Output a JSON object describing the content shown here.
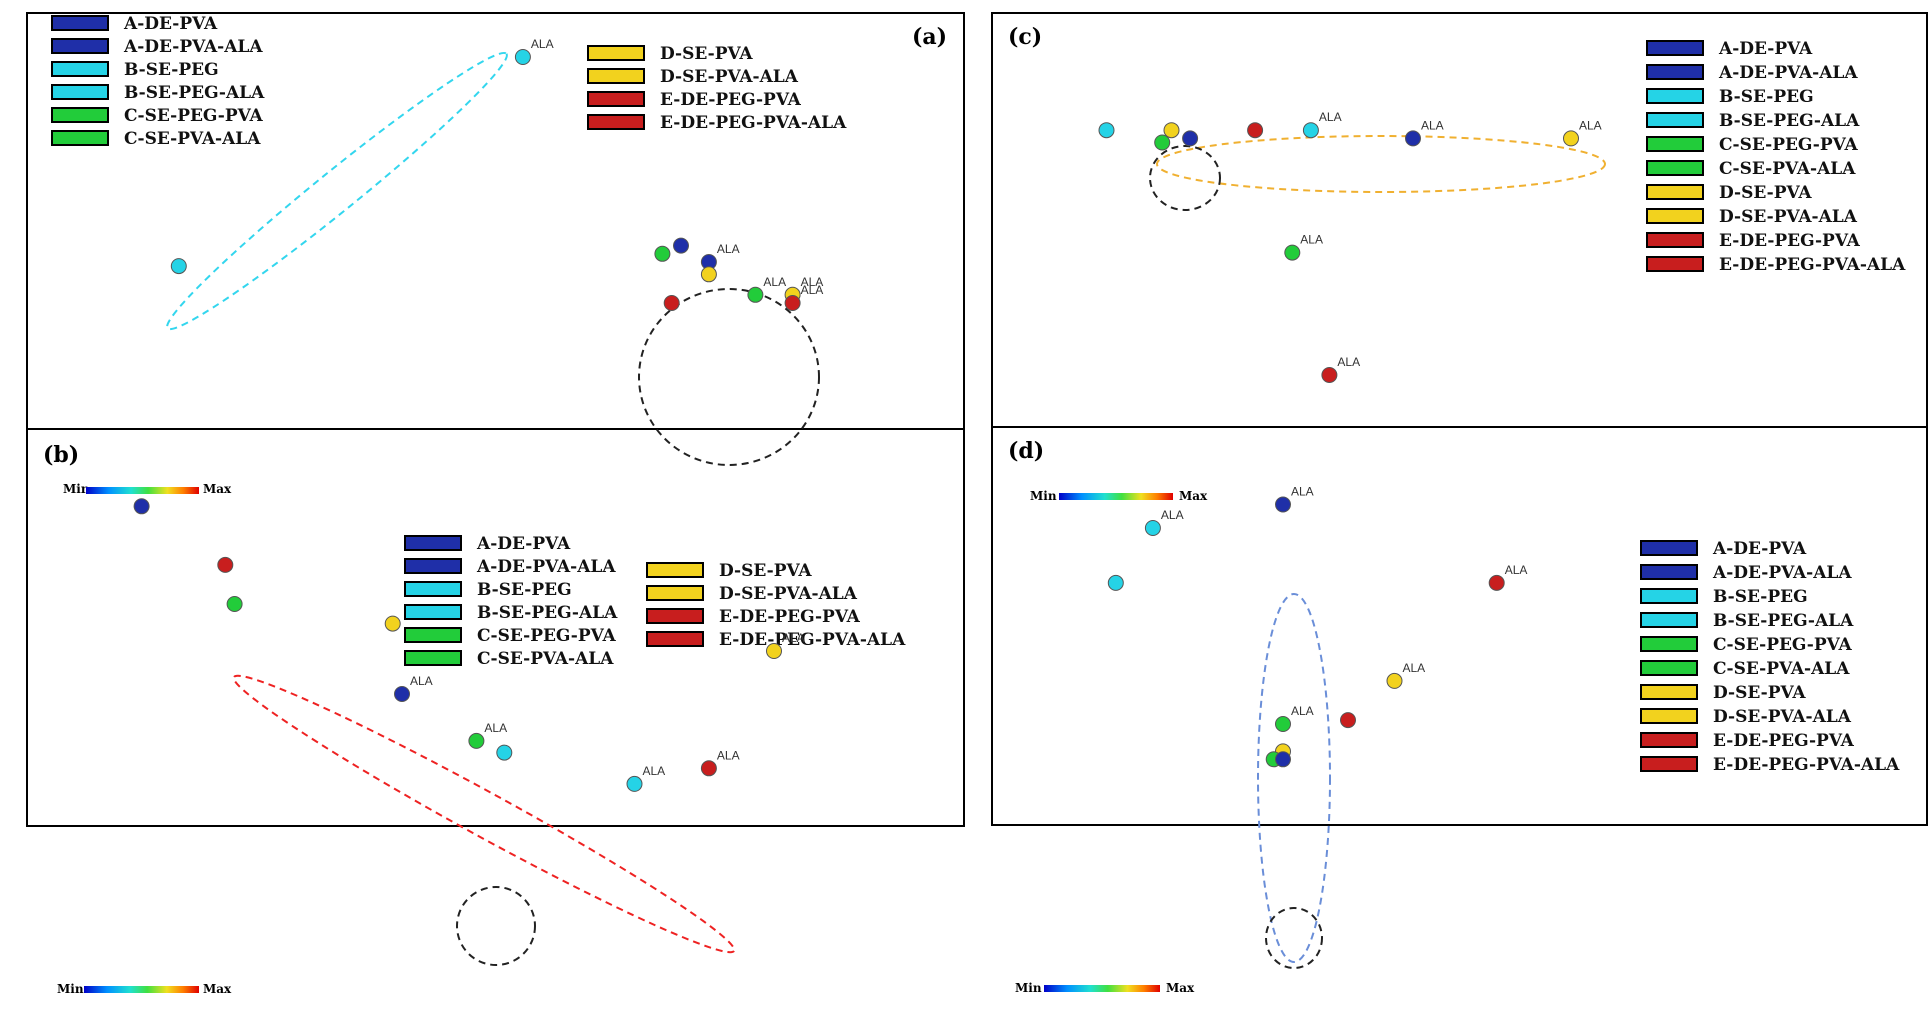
{
  "group_colors": {
    "A": "#1f2fa8",
    "B": "#25d3e6",
    "C": "#22cc3a",
    "D": "#f2d21e",
    "E": "#c81e1e"
  },
  "chart_data": [
    {
      "type": "scatter",
      "panel_label": "(a)",
      "title": "",
      "xlabel": "",
      "ylabel": "",
      "xlim": [
        0,
        1
      ],
      "ylim": [
        0,
        1
      ],
      "grid": false,
      "legend_position": "top-left, two columns",
      "color_scale": {
        "min_label": "Min",
        "max_label": "Max"
      },
      "legend": [
        {
          "label": "A-DE-PVA",
          "group": "A"
        },
        {
          "label": "A-DE-PVA-ALA",
          "group": "A"
        },
        {
          "label": "B-SE-PEG",
          "group": "B"
        },
        {
          "label": "B-SE-PEG-ALA",
          "group": "B"
        },
        {
          "label": "C-SE-PEG-PVA",
          "group": "C"
        },
        {
          "label": "C-SE-PVA-ALA",
          "group": "C"
        },
        {
          "label": "D-SE-PVA",
          "group": "D"
        },
        {
          "label": "D-SE-PVA-ALA",
          "group": "D"
        },
        {
          "label": "E-DE-PEG-PVA",
          "group": "E"
        },
        {
          "label": "E-DE-PEG-PVA-ALA",
          "group": "E"
        }
      ],
      "points": [
        {
          "x": 0.16,
          "y": 0.39,
          "group": "B",
          "label": ""
        },
        {
          "x": 0.53,
          "y": 0.9,
          "group": "B",
          "label": "ALA"
        },
        {
          "x": 0.7,
          "y": 0.44,
          "group": "A",
          "label": ""
        },
        {
          "x": 0.73,
          "y": 0.4,
          "group": "A",
          "label": "ALA"
        },
        {
          "x": 0.68,
          "y": 0.42,
          "group": "C",
          "label": ""
        },
        {
          "x": 0.73,
          "y": 0.37,
          "group": "D",
          "label": ""
        },
        {
          "x": 0.78,
          "y": 0.32,
          "group": "C",
          "label": "ALA"
        },
        {
          "x": 0.82,
          "y": 0.32,
          "group": "D",
          "label": "ALA"
        },
        {
          "x": 0.69,
          "y": 0.3,
          "group": "E",
          "label": ""
        },
        {
          "x": 0.82,
          "y": 0.3,
          "group": "E",
          "label": "ALA"
        }
      ]
    },
    {
      "type": "scatter",
      "panel_label": "(b)",
      "title": "",
      "xlabel": "",
      "ylabel": "",
      "xlim": [
        0,
        1
      ],
      "ylim": [
        0,
        1
      ],
      "grid": false,
      "legend_position": "top-center, two columns",
      "color_scale": {
        "min_label": "Min",
        "max_label": "Max"
      },
      "legend": [
        {
          "label": "A-DE-PVA",
          "group": "A"
        },
        {
          "label": "A-DE-PVA-ALA",
          "group": "A"
        },
        {
          "label": "B-SE-PEG",
          "group": "B"
        },
        {
          "label": "B-SE-PEG-ALA",
          "group": "B"
        },
        {
          "label": "C-SE-PEG-PVA",
          "group": "C"
        },
        {
          "label": "C-SE-PVA-ALA",
          "group": "C"
        },
        {
          "label": "D-SE-PVA",
          "group": "D"
        },
        {
          "label": "D-SE-PVA-ALA",
          "group": "D"
        },
        {
          "label": "E-DE-PEG-PVA",
          "group": "E"
        },
        {
          "label": "E-DE-PEG-PVA-ALA",
          "group": "E"
        }
      ],
      "points": [
        {
          "x": 0.12,
          "y": 0.81,
          "group": "A",
          "label": ""
        },
        {
          "x": 0.21,
          "y": 0.66,
          "group": "E",
          "label": ""
        },
        {
          "x": 0.22,
          "y": 0.56,
          "group": "C",
          "label": ""
        },
        {
          "x": 0.39,
          "y": 0.51,
          "group": "D",
          "label": ""
        },
        {
          "x": 0.4,
          "y": 0.33,
          "group": "A",
          "label": "ALA"
        },
        {
          "x": 0.48,
          "y": 0.21,
          "group": "C",
          "label": "ALA"
        },
        {
          "x": 0.51,
          "y": 0.18,
          "group": "B",
          "label": ""
        },
        {
          "x": 0.65,
          "y": 0.1,
          "group": "B",
          "label": "ALA"
        },
        {
          "x": 0.73,
          "y": 0.14,
          "group": "E",
          "label": "ALA"
        },
        {
          "x": 0.8,
          "y": 0.44,
          "group": "D",
          "label": "ALA"
        }
      ]
    },
    {
      "type": "scatter",
      "panel_label": "(c)",
      "title": "",
      "xlabel": "",
      "ylabel": "",
      "xlim": [
        0,
        1
      ],
      "ylim": [
        0,
        1
      ],
      "grid": false,
      "legend_position": "top-right",
      "color_scale": {
        "min_label": "Min",
        "max_label": "Max"
      },
      "legend": [
        {
          "label": "A-DE-PVA",
          "group": "A"
        },
        {
          "label": "A-DE-PVA-ALA",
          "group": "A"
        },
        {
          "label": "B-SE-PEG",
          "group": "B"
        },
        {
          "label": "B-SE-PEG-ALA",
          "group": "B"
        },
        {
          "label": "C-SE-PEG-PVA",
          "group": "C"
        },
        {
          "label": "C-SE-PVA-ALA",
          "group": "C"
        },
        {
          "label": "D-SE-PVA",
          "group": "D"
        },
        {
          "label": "D-SE-PVA-ALA",
          "group": "D"
        },
        {
          "label": "E-DE-PEG-PVA",
          "group": "E"
        },
        {
          "label": "E-DE-PEG-PVA-ALA",
          "group": "E"
        }
      ],
      "points": [
        {
          "x": 0.12,
          "y": 0.72,
          "group": "B",
          "label": ""
        },
        {
          "x": 0.19,
          "y": 0.72,
          "group": "D",
          "label": ""
        },
        {
          "x": 0.18,
          "y": 0.69,
          "group": "C",
          "label": ""
        },
        {
          "x": 0.21,
          "y": 0.7,
          "group": "A",
          "label": ""
        },
        {
          "x": 0.28,
          "y": 0.72,
          "group": "E",
          "label": ""
        },
        {
          "x": 0.34,
          "y": 0.72,
          "group": "B",
          "label": "ALA"
        },
        {
          "x": 0.45,
          "y": 0.7,
          "group": "A",
          "label": "ALA"
        },
        {
          "x": 0.62,
          "y": 0.7,
          "group": "D",
          "label": "ALA"
        },
        {
          "x": 0.32,
          "y": 0.42,
          "group": "C",
          "label": "ALA"
        },
        {
          "x": 0.36,
          "y": 0.12,
          "group": "E",
          "label": "ALA"
        }
      ]
    },
    {
      "type": "scatter",
      "panel_label": "(d)",
      "title": "",
      "xlabel": "",
      "ylabel": "",
      "xlim": [
        0,
        1
      ],
      "ylim": [
        0,
        1
      ],
      "grid": false,
      "legend_position": "top-right",
      "color_scale": {
        "min_label": "Min",
        "max_label": "Max"
      },
      "legend": [
        {
          "label": "A-DE-PVA",
          "group": "A"
        },
        {
          "label": "A-DE-PVA-ALA",
          "group": "A"
        },
        {
          "label": "B-SE-PEG",
          "group": "B"
        },
        {
          "label": "B-SE-PEG-ALA",
          "group": "B"
        },
        {
          "label": "C-SE-PEG-PVA",
          "group": "C"
        },
        {
          "label": "C-SE-PVA-ALA",
          "group": "C"
        },
        {
          "label": "D-SE-PVA",
          "group": "D"
        },
        {
          "label": "D-SE-PVA-ALA",
          "group": "D"
        },
        {
          "label": "E-DE-PEG-PVA",
          "group": "E"
        },
        {
          "label": "E-DE-PEG-PVA-ALA",
          "group": "E"
        }
      ],
      "points": [
        {
          "x": 0.17,
          "y": 0.75,
          "group": "B",
          "label": "ALA"
        },
        {
          "x": 0.13,
          "y": 0.61,
          "group": "B",
          "label": ""
        },
        {
          "x": 0.31,
          "y": 0.81,
          "group": "A",
          "label": "ALA"
        },
        {
          "x": 0.31,
          "y": 0.25,
          "group": "C",
          "label": "ALA"
        },
        {
          "x": 0.31,
          "y": 0.18,
          "group": "D",
          "label": ""
        },
        {
          "x": 0.3,
          "y": 0.16,
          "group": "C",
          "label": ""
        },
        {
          "x": 0.31,
          "y": 0.16,
          "group": "A",
          "label": ""
        },
        {
          "x": 0.38,
          "y": 0.26,
          "group": "E",
          "label": ""
        },
        {
          "x": 0.43,
          "y": 0.36,
          "group": "D",
          "label": "ALA"
        },
        {
          "x": 0.54,
          "y": 0.61,
          "group": "E",
          "label": "ALA"
        }
      ]
    }
  ]
}
